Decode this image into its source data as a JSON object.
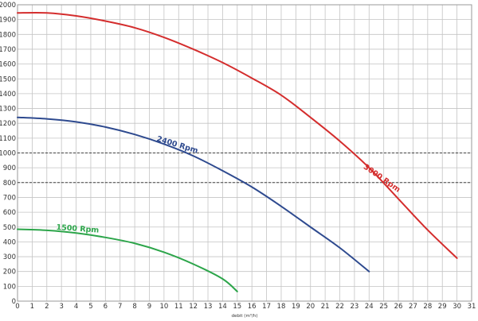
{
  "chart_data": {
    "type": "line",
    "title": "",
    "xlabel": "debit (m³/h)",
    "ylabel": "",
    "xlim": [
      0,
      31
    ],
    "ylim": [
      0,
      2000
    ],
    "x_ticks": [
      0,
      1,
      2,
      3,
      4,
      5,
      6,
      7,
      8,
      9,
      10,
      11,
      12,
      13,
      14,
      15,
      16,
      17,
      18,
      19,
      20,
      21,
      22,
      23,
      24,
      25,
      26,
      27,
      28,
      29,
      30,
      31
    ],
    "y_ticks": [
      0,
      100,
      200,
      300,
      400,
      500,
      600,
      700,
      800,
      900,
      1000,
      1100,
      1200,
      1300,
      1400,
      1500,
      1600,
      1700,
      1800,
      1900,
      2000
    ],
    "grid": true,
    "reference_lines": [
      {
        "y": 1000,
        "style": "dashed"
      },
      {
        "y": 800,
        "style": "dashed"
      }
    ],
    "series": [
      {
        "name": "3000 Rpm",
        "color": "#d42d2d",
        "x": [
          0,
          2,
          4,
          6,
          8,
          10,
          12,
          14,
          16,
          18,
          20,
          22,
          24,
          26,
          28,
          30
        ],
        "y": [
          1945,
          1945,
          1925,
          1890,
          1845,
          1780,
          1700,
          1610,
          1505,
          1390,
          1240,
          1080,
          900,
          690,
          480,
          290
        ]
      },
      {
        "name": "2400 Rpm",
        "color": "#2e4a8f",
        "x": [
          0,
          2,
          4,
          6,
          8,
          10,
          12,
          14,
          16,
          18,
          20,
          22,
          24
        ],
        "y": [
          1240,
          1230,
          1210,
          1175,
          1125,
          1060,
          980,
          880,
          770,
          640,
          500,
          360,
          200
        ]
      },
      {
        "name": "1500 Rpm",
        "color": "#2ca54a",
        "x": [
          0,
          2,
          4,
          6,
          8,
          10,
          12,
          14,
          15
        ],
        "y": [
          485,
          478,
          460,
          430,
          390,
          330,
          250,
          150,
          65
        ]
      }
    ]
  }
}
